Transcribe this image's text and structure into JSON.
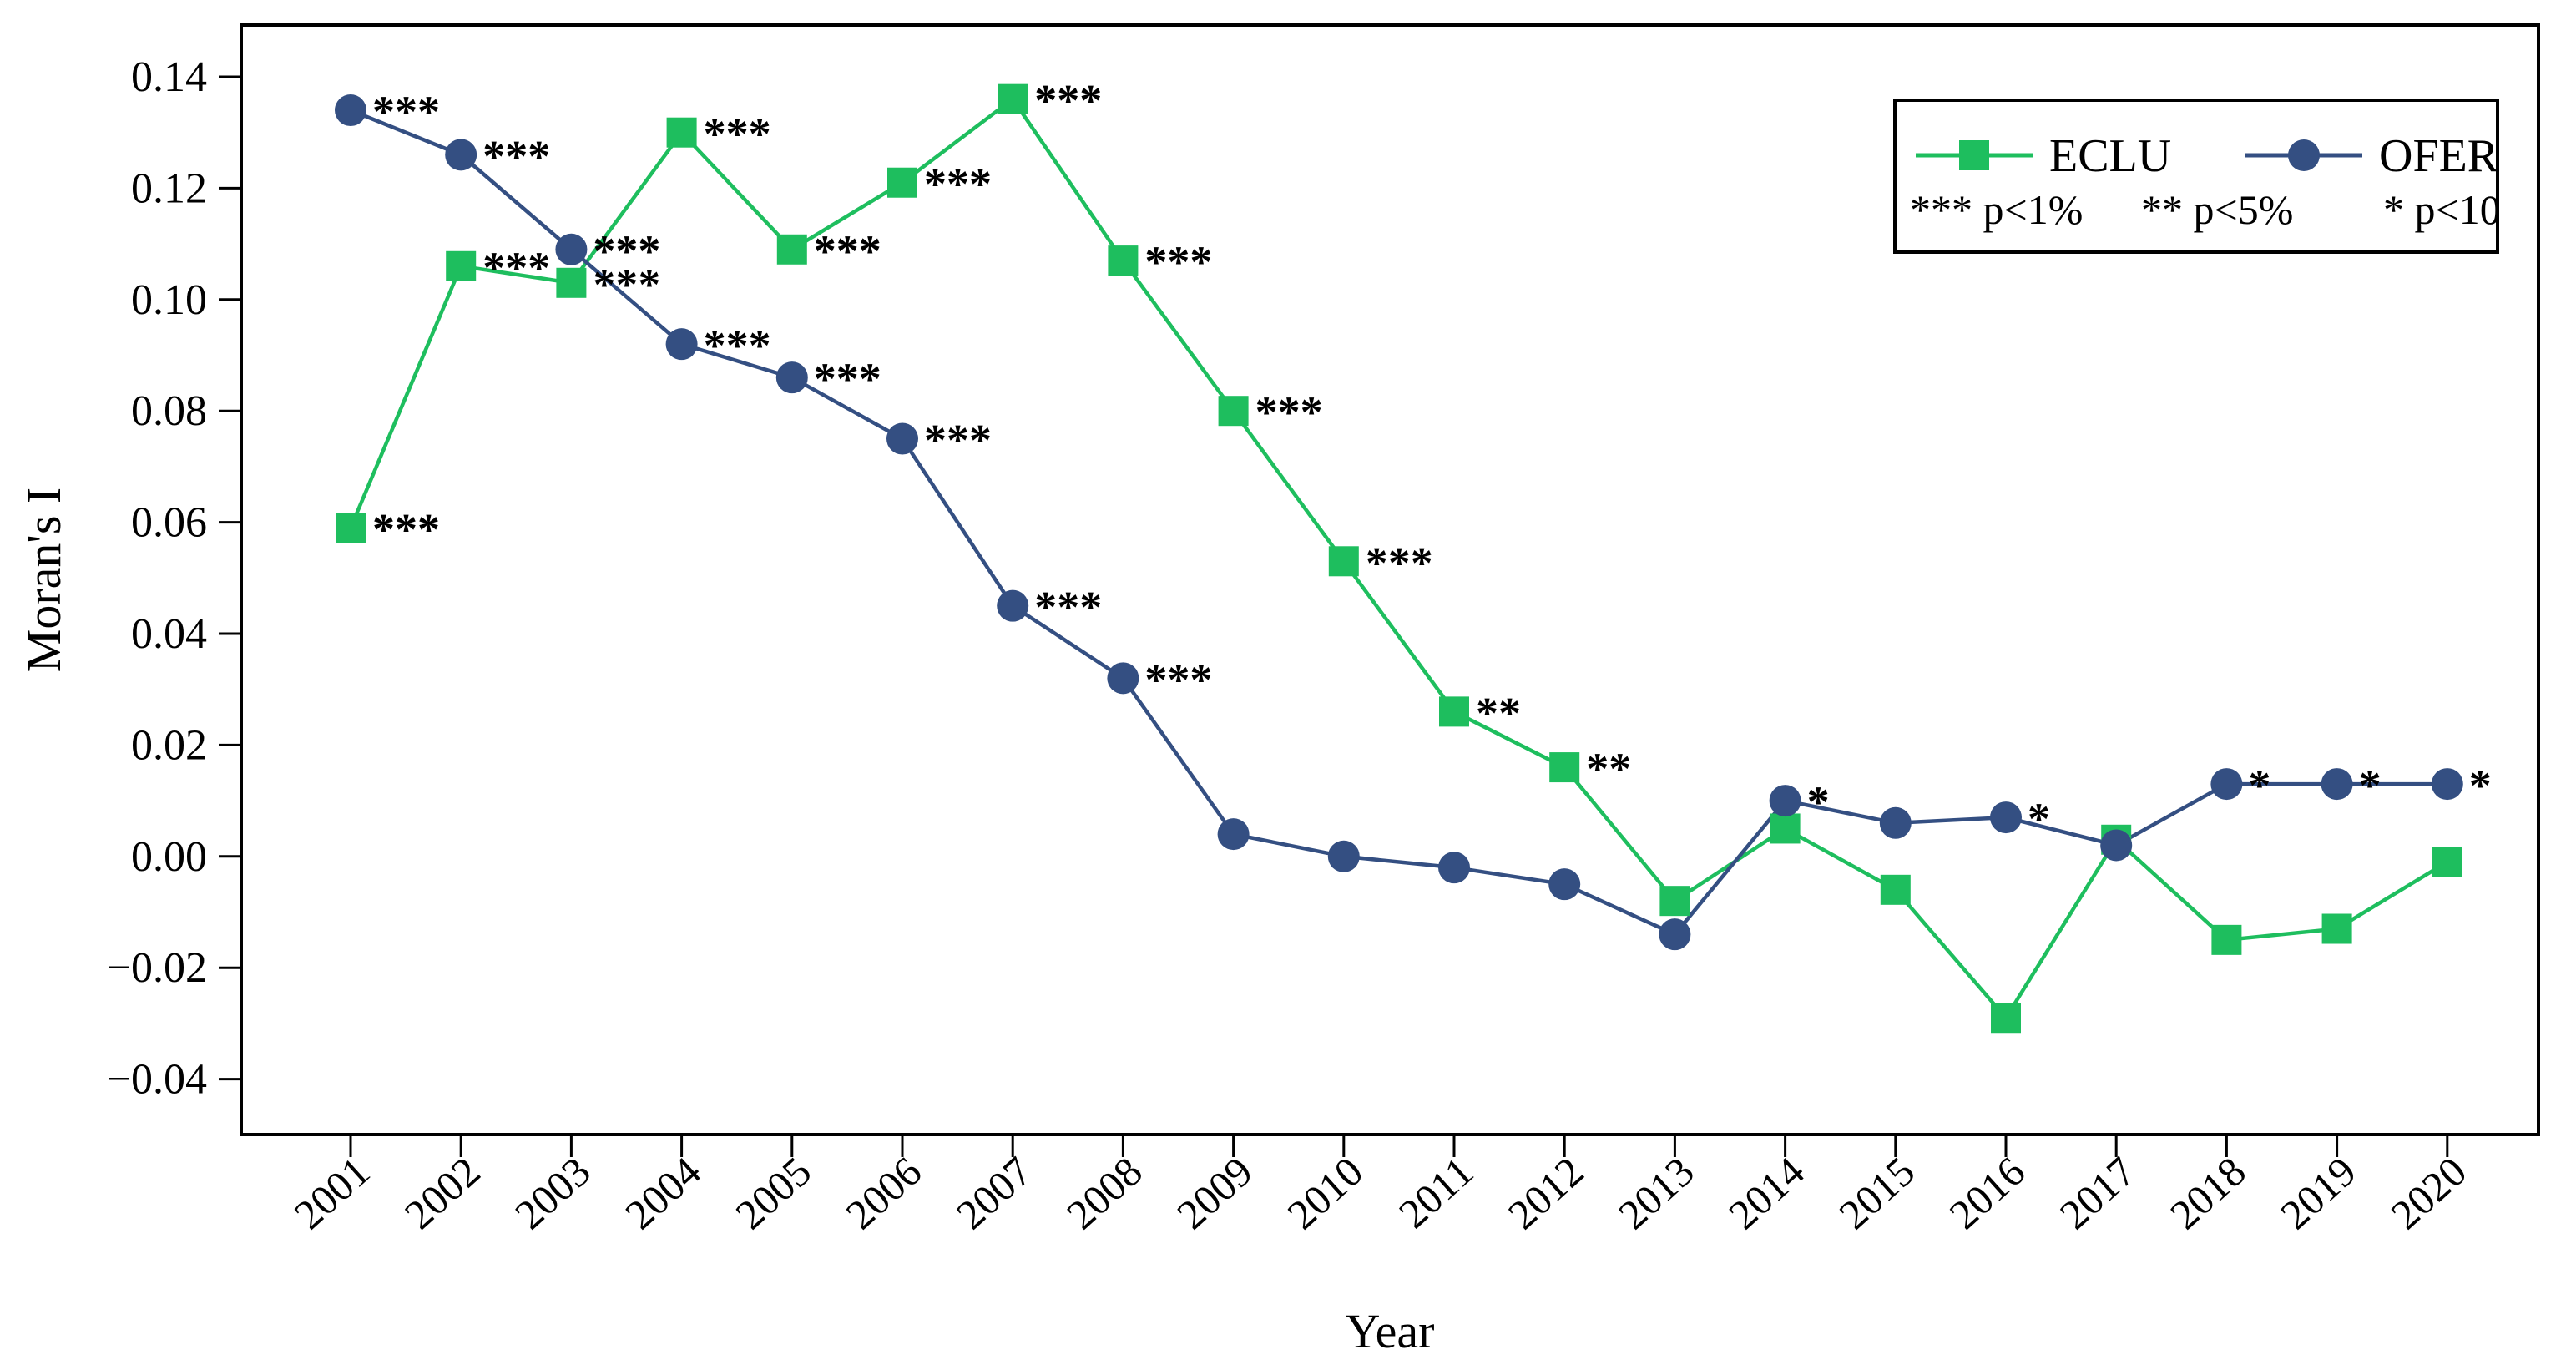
{
  "figure": {
    "y_axis_label": "Moran's I",
    "x_axis_label": "Year",
    "y_tick_labels": [
      "0.14",
      "0.12",
      "0.10",
      "0.08",
      "0.06",
      "0.04",
      "0.02",
      "0.00",
      "−0.02",
      "−0.04"
    ],
    "y_tick_values": [
      0.14,
      0.12,
      0.1,
      0.08,
      0.06,
      0.04,
      0.02,
      0.0,
      -0.02,
      -0.04
    ]
  },
  "legend": {
    "entries": [
      {
        "label": "ECLU",
        "marker": "square",
        "color": "#1ebe5e"
      },
      {
        "label": "OFER",
        "marker": "circle",
        "color": "#344f82"
      }
    ],
    "significance_notes": [
      "*** p<1%",
      "** p<5%",
      "* p<10"
    ]
  },
  "colors": {
    "eclu_green": "#1ebe5e",
    "ofer_blue": "#344f82",
    "axis_black": "#000000",
    "background": "#ffffff"
  },
  "chart_data": {
    "type": "line",
    "title": "",
    "xlabel": "Year",
    "ylabel": "Moran's I",
    "grid": false,
    "legend_position": "top-right",
    "x": [
      2001,
      2002,
      2003,
      2004,
      2005,
      2006,
      2007,
      2008,
      2009,
      2010,
      2011,
      2012,
      2013,
      2014,
      2015,
      2016,
      2017,
      2018,
      2019,
      2020
    ],
    "ylim": [
      -0.05,
      0.149
    ],
    "y_ticks": [
      0.14,
      0.12,
      0.1,
      0.08,
      0.06,
      0.04,
      0.02,
      0.0,
      -0.02,
      -0.04
    ],
    "series": [
      {
        "name": "ECLU",
        "marker": "square",
        "color": "#1ebe5e",
        "values": [
          0.059,
          0.106,
          0.103,
          0.13,
          0.109,
          0.121,
          0.136,
          0.107,
          0.08,
          0.053,
          0.026,
          0.016,
          -0.008,
          0.005,
          -0.006,
          -0.029,
          0.003,
          -0.015,
          -0.013,
          -0.001
        ],
        "significance": [
          "***",
          "***",
          "***",
          "***",
          "***",
          "***",
          "***",
          "***",
          "***",
          "***",
          "**",
          "**",
          "",
          "",
          "",
          "",
          "",
          "",
          "",
          ""
        ]
      },
      {
        "name": "OFER",
        "marker": "circle",
        "color": "#344f82",
        "values": [
          0.134,
          0.126,
          0.109,
          0.092,
          0.086,
          0.075,
          0.045,
          0.032,
          0.004,
          0.0,
          -0.002,
          -0.005,
          -0.014,
          0.01,
          0.006,
          0.007,
          0.002,
          0.013,
          0.013,
          0.013
        ],
        "significance": [
          "***",
          "***",
          "***",
          "***",
          "***",
          "***",
          "***",
          "***",
          "",
          "",
          "",
          "",
          "",
          "*",
          "",
          "*",
          "",
          "*",
          "*",
          "*"
        ]
      }
    ]
  }
}
